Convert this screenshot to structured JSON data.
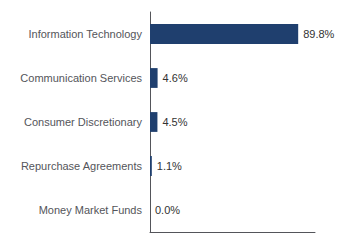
{
  "chart_data": {
    "type": "bar",
    "orientation": "horizontal",
    "categories": [
      "Information Technology",
      "Communication Services",
      "Consumer Discretionary",
      "Repurchase Agreements",
      "Money Market Funds"
    ],
    "values": [
      89.8,
      4.6,
      4.5,
      1.1,
      0.0
    ],
    "value_labels": [
      "89.8%",
      "4.6%",
      "4.5%",
      "1.1%",
      "0.0%"
    ],
    "color": "#1f3f6e",
    "xlim": [
      0,
      100
    ],
    "grid": false,
    "data_labels": true,
    "tick_labels": "y"
  }
}
